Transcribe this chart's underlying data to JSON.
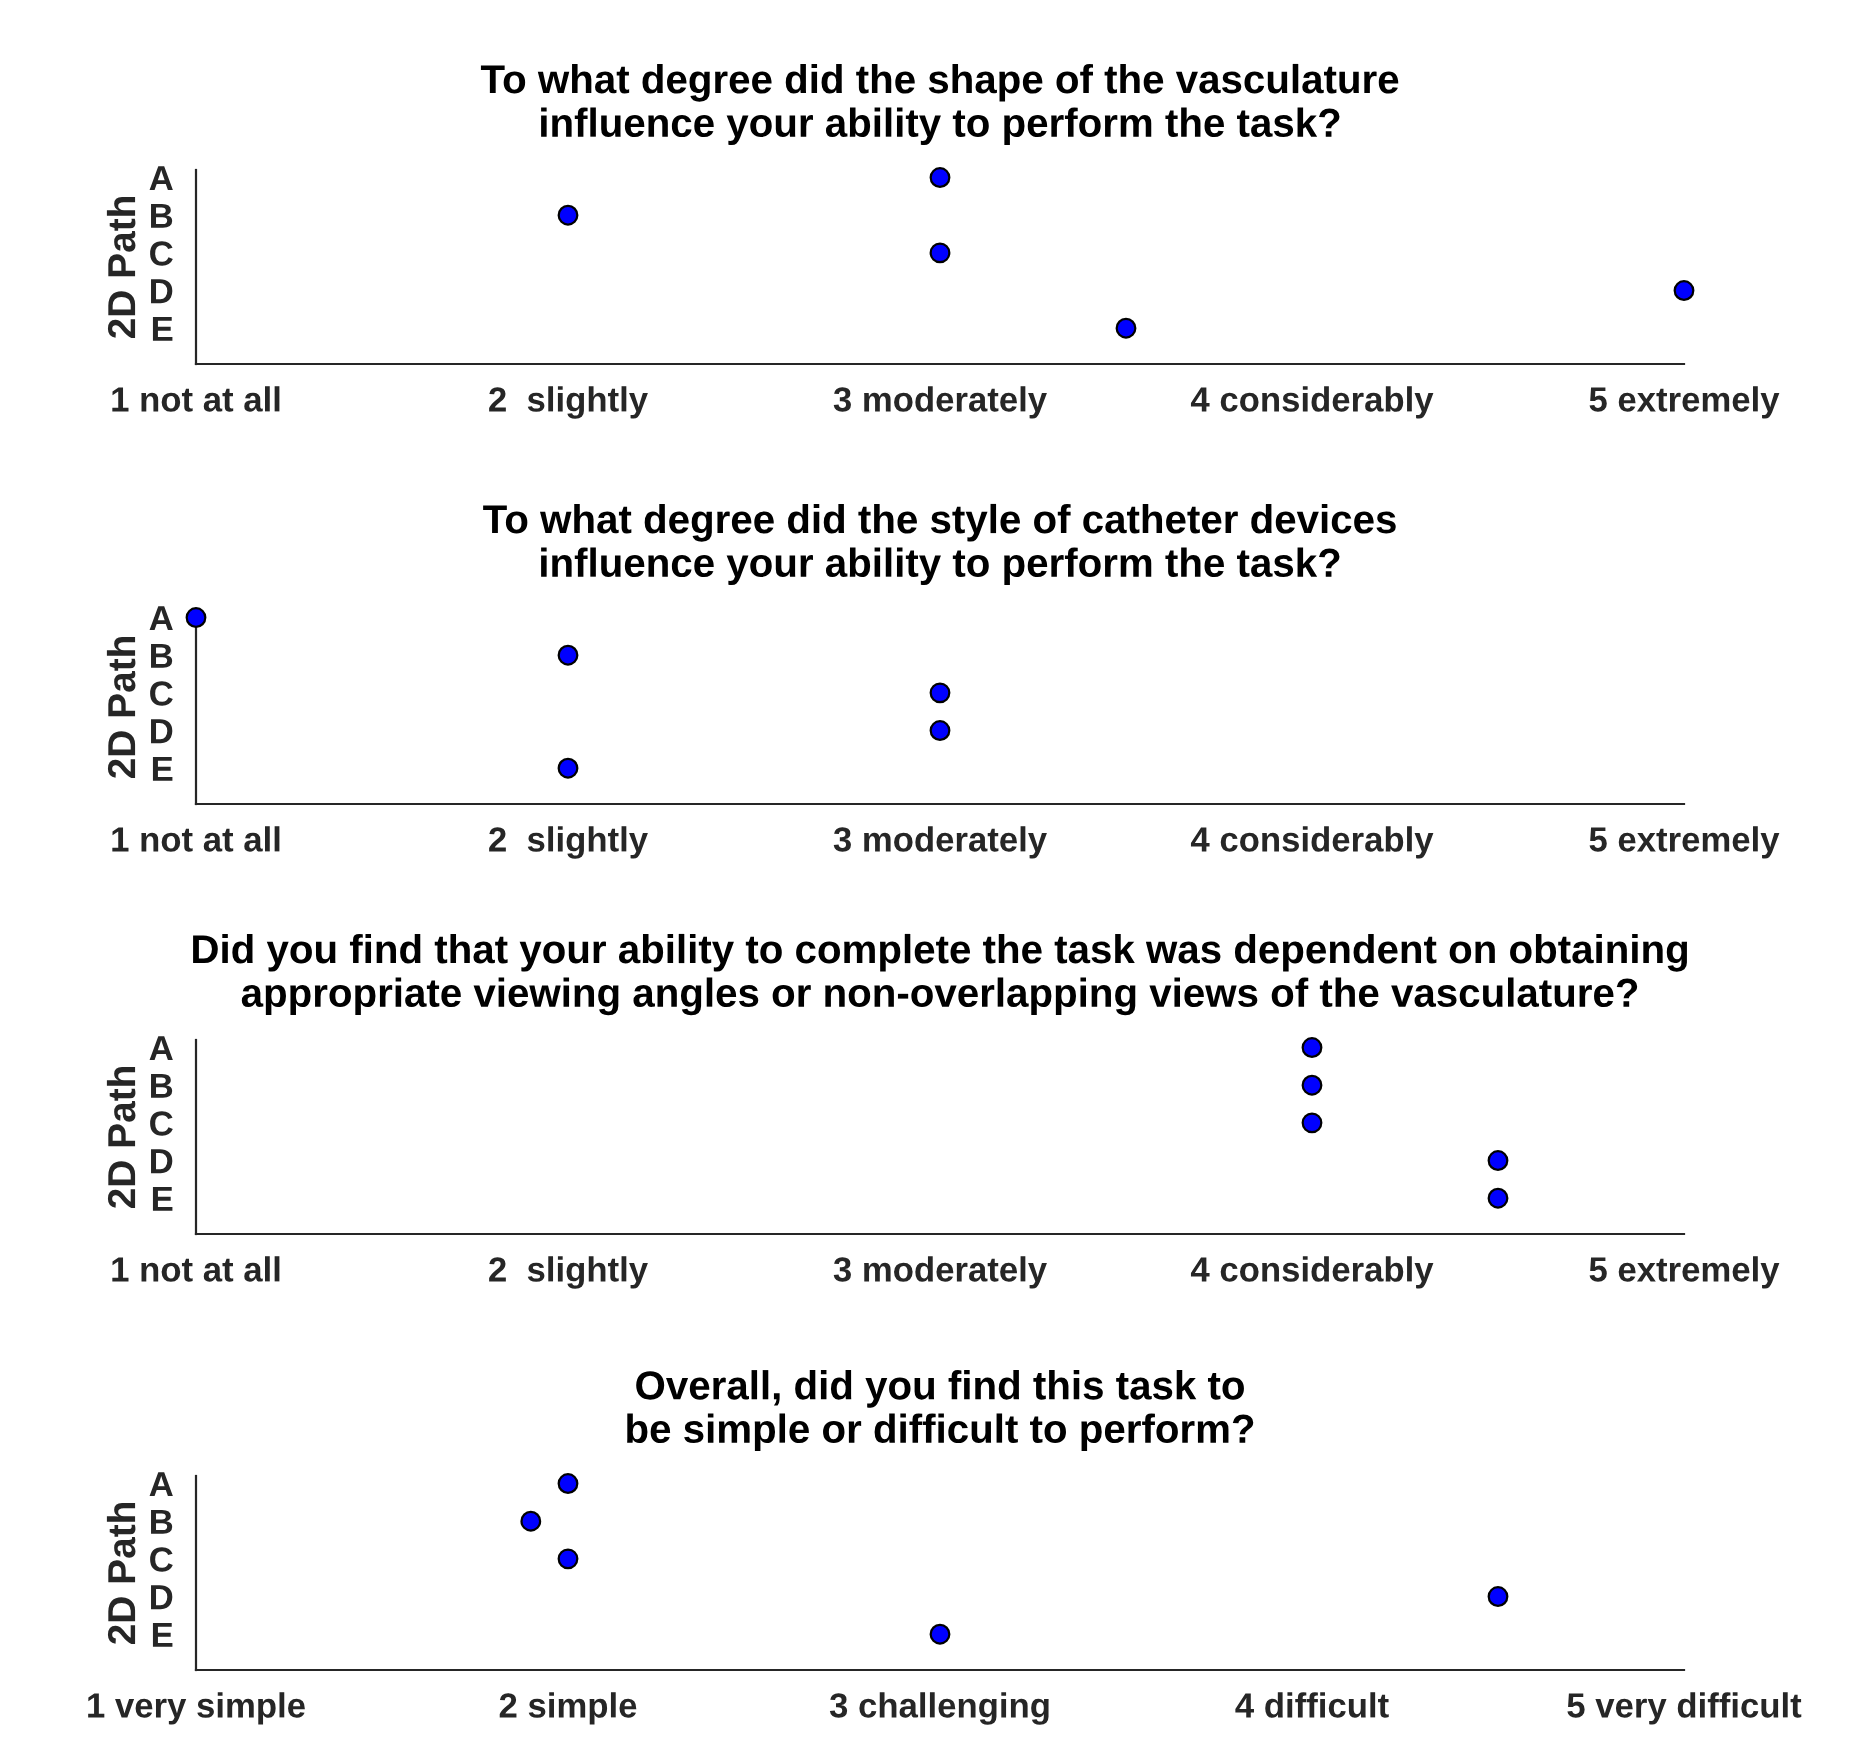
{
  "chart_data": [
    {
      "type": "scatter",
      "orientation": "horizontal",
      "title": "To what degree did the shape of the vasculature\ninfluence your ability to perform the task?",
      "ylabel": "2D Path",
      "categories": [
        "A",
        "B",
        "C",
        "D",
        "E"
      ],
      "values": [
        3,
        2,
        3,
        5,
        3.5
      ],
      "color": "#0000ff",
      "marker": "circle",
      "xlim": [
        1,
        5
      ],
      "xticks": [
        {
          "value": 1,
          "label": "1 not at all"
        },
        {
          "value": 2,
          "label": "2  slightly"
        },
        {
          "value": 3,
          "label": "3 moderately"
        },
        {
          "value": 4,
          "label": "4 considerably"
        },
        {
          "value": 5,
          "label": "5 extremely"
        }
      ],
      "grid": false,
      "legend": false
    },
    {
      "type": "scatter",
      "orientation": "horizontal",
      "title": "To what degree did the style of catheter devices\ninfluence your ability to perform the task?",
      "ylabel": "2D Path",
      "categories": [
        "A",
        "B",
        "C",
        "D",
        "E"
      ],
      "values": [
        1,
        2,
        3,
        3,
        2
      ],
      "color": "#0000ff",
      "marker": "circle",
      "xlim": [
        1,
        5
      ],
      "xticks": [
        {
          "value": 1,
          "label": "1 not at all"
        },
        {
          "value": 2,
          "label": "2  slightly"
        },
        {
          "value": 3,
          "label": "3 moderately"
        },
        {
          "value": 4,
          "label": "4 considerably"
        },
        {
          "value": 5,
          "label": "5 extremely"
        }
      ],
      "grid": false,
      "legend": false
    },
    {
      "type": "scatter",
      "orientation": "horizontal",
      "title": "Did you find that your ability to complete the task was dependent on obtaining\nappropriate viewing angles or non-overlapping views of the vasculature?",
      "ylabel": "2D Path",
      "categories": [
        "A",
        "B",
        "C",
        "D",
        "E"
      ],
      "values": [
        4,
        4,
        4,
        4.5,
        4.5
      ],
      "color": "#0000ff",
      "marker": "circle",
      "xlim": [
        1,
        5
      ],
      "xticks": [
        {
          "value": 1,
          "label": "1 not at all"
        },
        {
          "value": 2,
          "label": "2  slightly"
        },
        {
          "value": 3,
          "label": "3 moderately"
        },
        {
          "value": 4,
          "label": "4 considerably"
        },
        {
          "value": 5,
          "label": "5 extremely"
        }
      ],
      "grid": false,
      "legend": false
    },
    {
      "type": "scatter",
      "orientation": "horizontal",
      "title": "Overall, did you find this task to\nbe simple or difficult to perform?",
      "ylabel": "2D Path",
      "categories": [
        "A",
        "B",
        "C",
        "D",
        "E"
      ],
      "values": [
        2,
        1.9,
        2,
        4.5,
        3
      ],
      "color": "#0000ff",
      "marker": "circle",
      "xlim": [
        1,
        5
      ],
      "xticks": [
        {
          "value": 1,
          "label": "1 very simple"
        },
        {
          "value": 2,
          "label": "2 simple"
        },
        {
          "value": 3,
          "label": "3 challenging"
        },
        {
          "value": 4,
          "label": "4 difficult"
        },
        {
          "value": 5,
          "label": "5 very difficult"
        }
      ],
      "grid": false,
      "legend": false
    }
  ]
}
